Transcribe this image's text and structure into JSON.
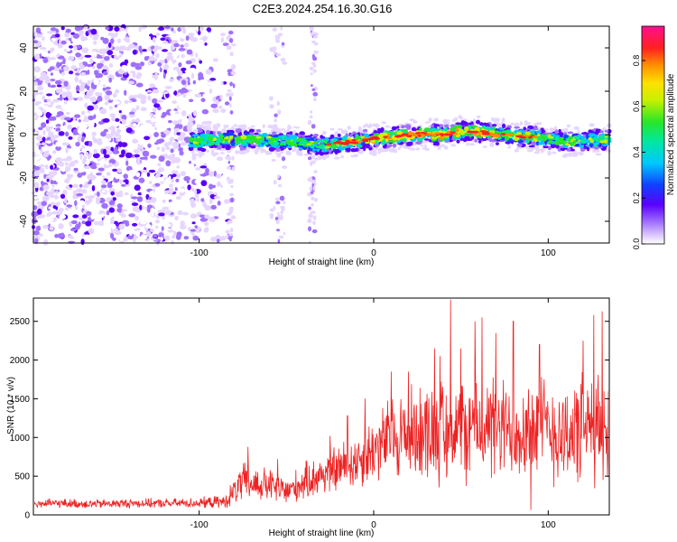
{
  "title": "C2E3.2024.254.16.30.G16",
  "chart_data": [
    {
      "type": "heatmap",
      "xlabel": "Height of straight line (km)",
      "ylabel": "Frequency (Hz)",
      "xlim": [
        -195,
        135
      ],
      "ylim": [
        -50,
        50
      ],
      "x_ticks": [
        -100,
        0,
        100
      ],
      "y_ticks": [
        -40,
        -20,
        0,
        20,
        40
      ],
      "colorbar": {
        "label": "Normalized spectral amplitude",
        "range": [
          0,
          0.95
        ],
        "ticks": [
          0,
          0.2,
          0.4,
          0.6,
          0.8
        ]
      },
      "signal_track": {
        "description_points_x": [
          -105,
          -80,
          -50,
          -30,
          -10,
          0,
          20,
          40,
          55,
          70,
          90,
          110,
          135
        ],
        "frequency_hz": [
          -3,
          -2,
          -3,
          -5,
          -3,
          -2,
          0,
          0,
          2,
          0,
          -1,
          -3,
          -2
        ]
      },
      "noise_region_x": [
        -195,
        -80
      ],
      "grid": false
    },
    {
      "type": "line",
      "xlabel": "Height of straight line (km)",
      "ylabel": "SNR (10 * v/v)",
      "xlim": [
        -195,
        135
      ],
      "ylim": [
        0,
        2800
      ],
      "x_ticks": [
        -100,
        0,
        100
      ],
      "y_ticks": [
        0,
        500,
        1000,
        1500,
        2000,
        2500
      ],
      "series": [
        {
          "color": "#ee2222",
          "x": [
            -195,
            -180,
            -160,
            -140,
            -120,
            -100,
            -85,
            -80,
            -75,
            -70,
            -60,
            -50,
            -40,
            -30,
            -20,
            -10,
            0,
            10,
            20,
            30,
            40,
            45,
            50,
            60,
            70,
            80,
            90,
            100,
            110,
            120,
            130,
            135
          ],
          "center": [
            140,
            150,
            140,
            150,
            150,
            155,
            170,
            300,
            420,
            400,
            380,
            300,
            420,
            520,
            600,
            700,
            850,
            1000,
            1050,
            1100,
            1100,
            1150,
            1100,
            1150,
            1100,
            1100,
            1150,
            1100,
            1050,
            1100,
            1100,
            1100
          ],
          "spread": [
            70,
            70,
            70,
            70,
            70,
            80,
            100,
            220,
            300,
            280,
            260,
            220,
            280,
            320,
            380,
            420,
            500,
            650,
            700,
            750,
            800,
            900,
            800,
            800,
            800,
            750,
            800,
            800,
            800,
            850,
            800,
            800
          ],
          "peaks": [
            [
              -72,
              880
            ],
            [
              -55,
              720
            ],
            [
              -25,
              1020
            ],
            [
              -15,
              1280
            ],
            [
              -5,
              1500
            ],
            [
              10,
              1850
            ],
            [
              20,
              1850
            ],
            [
              35,
              2150
            ],
            [
              38,
              2050
            ],
            [
              44,
              2780
            ],
            [
              50,
              2150
            ],
            [
              58,
              2500
            ],
            [
              62,
              2550
            ],
            [
              70,
              2350
            ],
            [
              80,
              2500
            ],
            [
              95,
              2200
            ],
            [
              120,
              2250
            ],
            [
              126,
              2580
            ],
            [
              131,
              2630
            ]
          ],
          "n_samples": 1300
        }
      ]
    }
  ]
}
